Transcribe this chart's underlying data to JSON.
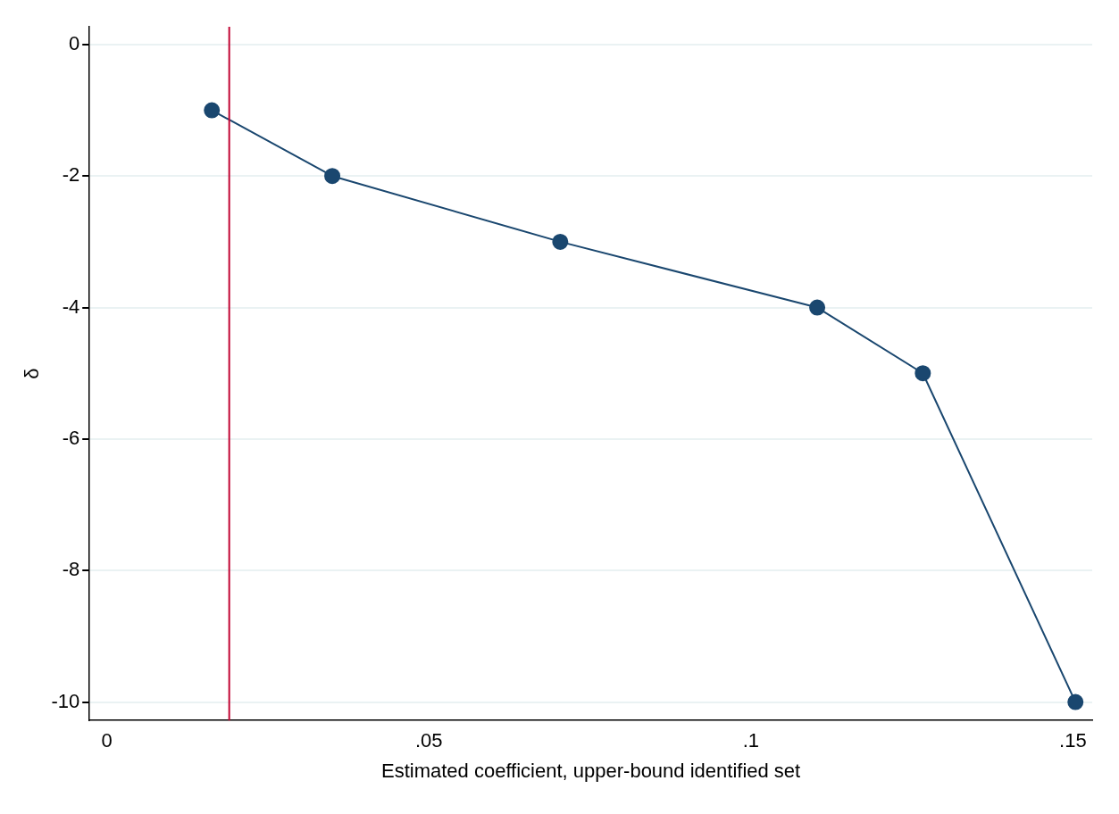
{
  "chart_data": {
    "type": "line",
    "xlabel": "Estimated coefficient, upper-bound identified set",
    "ylabel": "δ",
    "x": [
      0.0163,
      0.035,
      0.0704,
      0.1103,
      0.1267,
      0.1504
    ],
    "series": [
      {
        "color": "#1a476f",
        "values": [
          -1,
          -2,
          -3,
          -4,
          -5,
          -10
        ]
      }
    ],
    "xlim": [
      -0.0027,
      0.153
    ],
    "ylim": [
      -10.28,
      0.27
    ],
    "xticks": [
      0,
      {
        "value": 0.05,
        "label": ".05"
      },
      {
        "value": 0.1,
        "label": ".1"
      },
      {
        "value": 0.15,
        "label": ".15"
      }
    ],
    "yticks": [
      -10,
      -8,
      -6,
      -4,
      -2,
      0
    ],
    "ref_lines": [
      {
        "axis": "x",
        "value": 0.019,
        "color": "#c10534"
      }
    ],
    "grid": "y",
    "marker": "circle",
    "line_style": "solid",
    "legend": false
  }
}
